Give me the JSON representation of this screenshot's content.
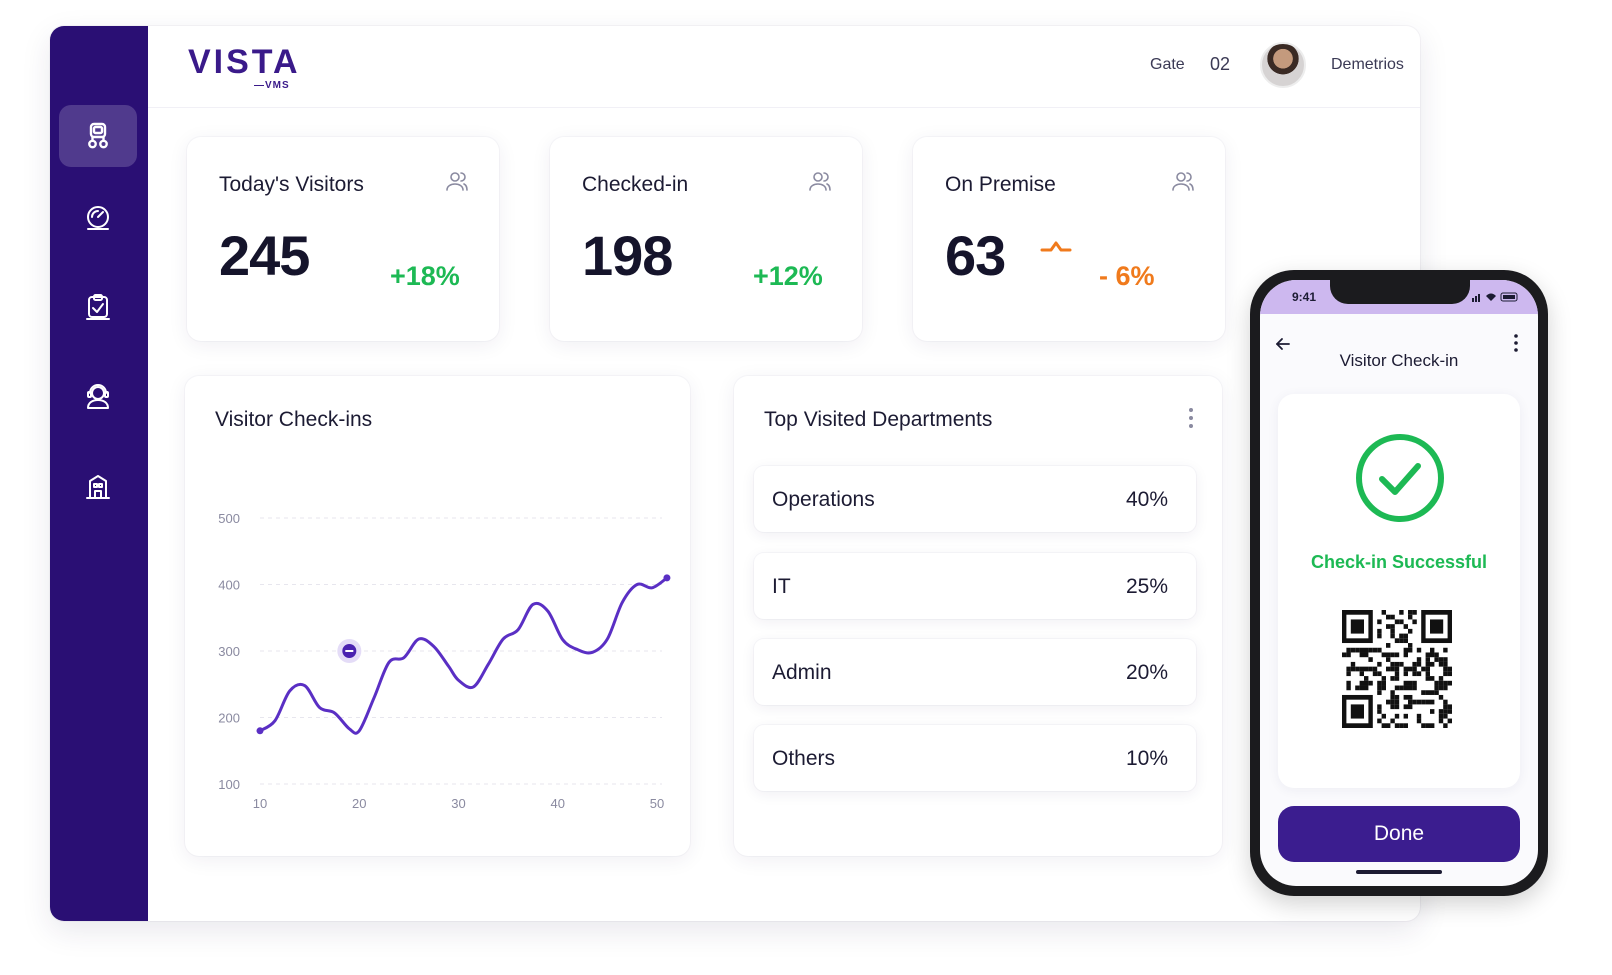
{
  "brand": {
    "name": "VISTA",
    "sub": "—VMS"
  },
  "header": {
    "gate_label": "Gate",
    "gate_number": "02",
    "user_name": "Demetrios"
  },
  "sidebar": {
    "items": [
      {
        "icon": "visitor-badge-icon",
        "active": true
      },
      {
        "icon": "dashboard-gauge-icon",
        "active": false
      },
      {
        "icon": "clipboard-check-icon",
        "active": false
      },
      {
        "icon": "user-support-icon",
        "active": false
      },
      {
        "icon": "building-icon",
        "active": false
      }
    ]
  },
  "stats": [
    {
      "title": "Today's Visitors",
      "value": "245",
      "change": "+18%",
      "trend": "up",
      "icon": "users-icon"
    },
    {
      "title": "Checked-in",
      "value": "198",
      "change": "+12%",
      "trend": "up",
      "icon": "users-icon"
    },
    {
      "title": "On Premise",
      "value": "63",
      "change": "- 6%",
      "trend": "down",
      "icon": "users-icon"
    }
  ],
  "checkins_chart": {
    "title": "Visitor Check-ins"
  },
  "chart_data": {
    "type": "line",
    "title": "Visitor Check-ins",
    "x_ticks": [
      10,
      20,
      30,
      40,
      50
    ],
    "y_ticks": [
      100,
      200,
      300,
      400,
      500
    ],
    "xlim": [
      10,
      50
    ],
    "ylim": [
      100,
      500
    ],
    "grid": true,
    "series": [
      {
        "x": [
          10,
          11.5,
          13,
          14.5,
          16,
          17.5,
          19,
          20,
          21.5,
          23,
          24.5,
          26,
          27.5,
          29,
          30,
          31.5,
          33,
          34.5,
          36,
          37.5,
          39,
          40.5,
          42,
          43.5,
          45,
          46.5,
          48,
          49.5,
          51
        ],
        "values": [
          180,
          195,
          240,
          248,
          215,
          207,
          183,
          180,
          230,
          283,
          290,
          318,
          307,
          277,
          256,
          246,
          280,
          318,
          332,
          370,
          360,
          317,
          302,
          298,
          318,
          373,
          400,
          395,
          410
        ],
        "color": "#5a2fc4"
      }
    ],
    "marker": {
      "x": 19,
      "value": 300
    }
  },
  "departments": {
    "title": "Top Visited Departments",
    "rows": [
      {
        "name": "Operations",
        "pct": "40%"
      },
      {
        "name": "IT",
        "pct": "25%"
      },
      {
        "name": "Admin",
        "pct": "20%"
      },
      {
        "name": "Others",
        "pct": "10%"
      }
    ]
  },
  "phone": {
    "time": "9:41",
    "title": "Visitor Check-in",
    "status": "Check-in Successful",
    "button": "Done"
  },
  "colors": {
    "primary": "#2a0f74",
    "accent": "#5a2fc4",
    "positive": "#1db954",
    "negative": "#f07a1c"
  }
}
